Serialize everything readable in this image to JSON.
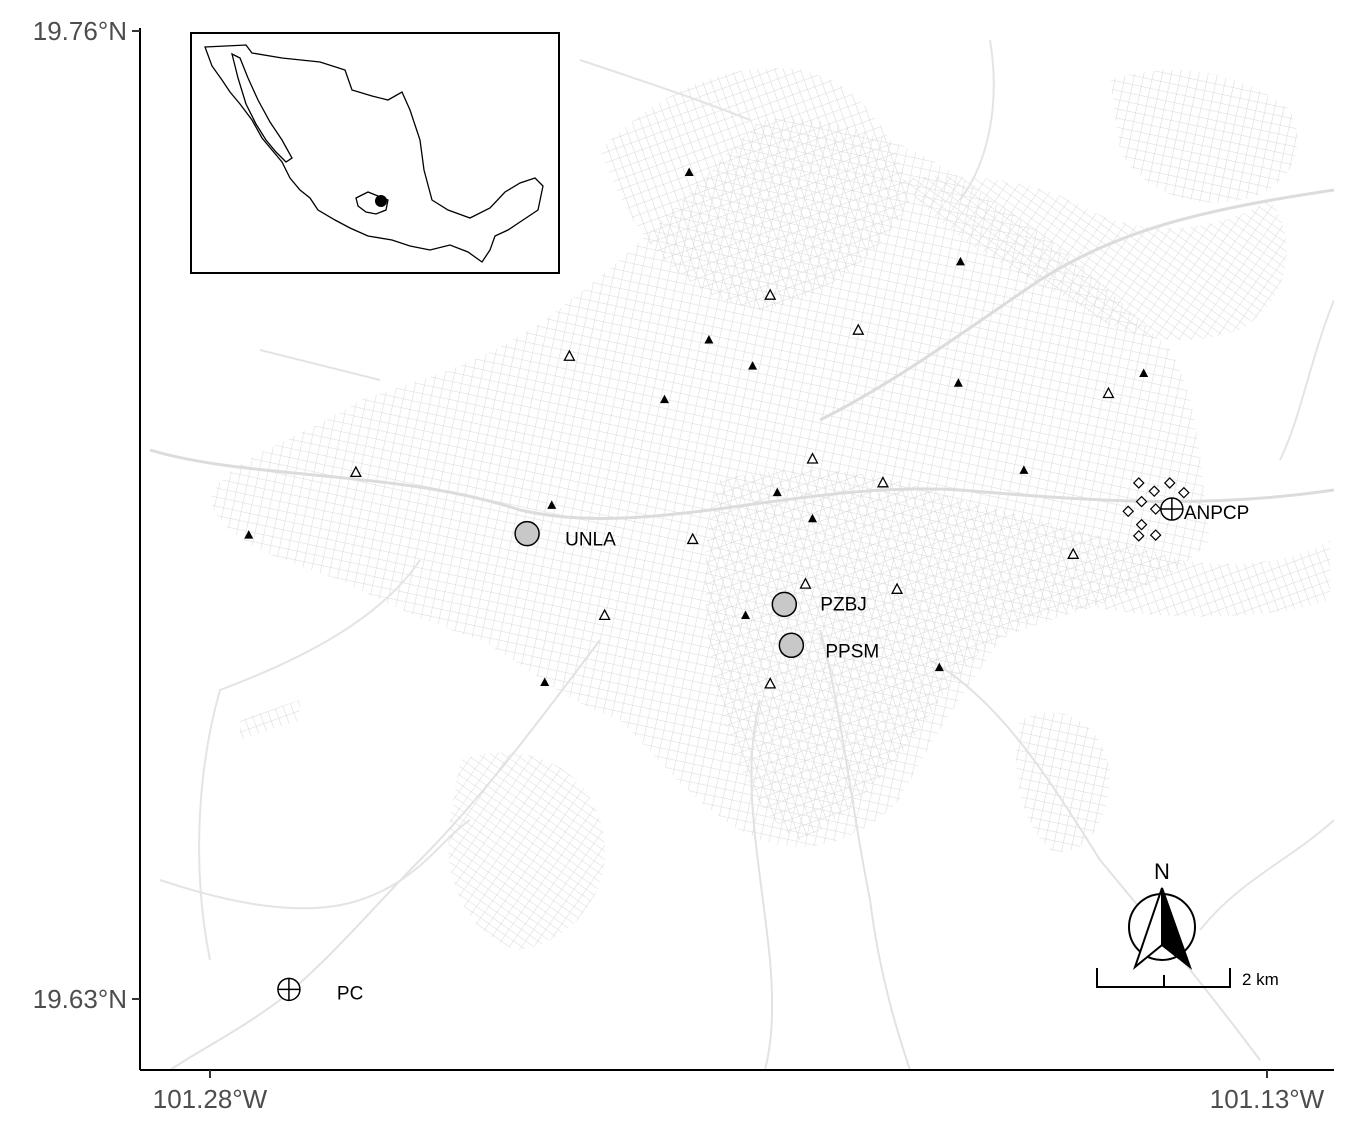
{
  "axes": {
    "x_ticks": [
      {
        "label": "101.28°W",
        "lon": -101.28
      },
      {
        "label": "101.13°W",
        "lon": -101.13
      }
    ],
    "y_ticks": [
      {
        "label": "19.76°N",
        "lat": 19.76
      },
      {
        "label": "19.63°N",
        "lat": 19.63
      }
    ]
  },
  "sites": [
    {
      "name": "UNLA",
      "label": "UNLA",
      "symbol": "grey-circle",
      "lon": -101.235,
      "lat": 19.6925
    },
    {
      "name": "PZBJ",
      "label": "PZBJ",
      "symbol": "grey-circle",
      "lon": -101.1985,
      "lat": 19.683
    },
    {
      "name": "PPSM",
      "label": "PPSM",
      "symbol": "grey-circle",
      "lon": -101.1975,
      "lat": 19.6775
    },
    {
      "name": "ANPCP",
      "label": "ANPCP",
      "symbol": "crossed-circle",
      "lon": -101.1435,
      "lat": 19.6958
    },
    {
      "name": "PC",
      "label": "PC",
      "symbol": "crossed-circle",
      "lon": -101.2688,
      "lat": 19.6313
    }
  ],
  "filled_triangles": [
    {
      "lon": -101.212,
      "lat": 19.741
    },
    {
      "lon": -101.1735,
      "lat": 19.729
    },
    {
      "lon": -101.2092,
      "lat": 19.7185
    },
    {
      "lon": -101.203,
      "lat": 19.715
    },
    {
      "lon": -101.2155,
      "lat": 19.7105
    },
    {
      "lon": -101.1738,
      "lat": 19.7127
    },
    {
      "lon": -101.1475,
      "lat": 19.714
    },
    {
      "lon": -101.1645,
      "lat": 19.701
    },
    {
      "lon": -101.1995,
      "lat": 19.698
    },
    {
      "lon": -101.2315,
      "lat": 19.6963
    },
    {
      "lon": -101.1945,
      "lat": 19.6945
    },
    {
      "lon": -101.2745,
      "lat": 19.6923
    },
    {
      "lon": -101.204,
      "lat": 19.6815
    },
    {
      "lon": -101.1765,
      "lat": 19.6745
    },
    {
      "lon": -101.2325,
      "lat": 19.6725
    }
  ],
  "open_triangles": [
    {
      "lon": -101.2005,
      "lat": 19.7245
    },
    {
      "lon": -101.188,
      "lat": 19.7198
    },
    {
      "lon": -101.229,
      "lat": 19.7163
    },
    {
      "lon": -101.1525,
      "lat": 19.7113
    },
    {
      "lon": -101.1945,
      "lat": 19.7025
    },
    {
      "lon": -101.1845,
      "lat": 19.6993
    },
    {
      "lon": -101.2593,
      "lat": 19.7007
    },
    {
      "lon": -101.2115,
      "lat": 19.6917
    },
    {
      "lon": -101.1575,
      "lat": 19.6897
    },
    {
      "lon": -101.1955,
      "lat": 19.6857
    },
    {
      "lon": -101.1825,
      "lat": 19.685
    },
    {
      "lon": -101.224,
      "lat": 19.6815
    },
    {
      "lon": -101.2005,
      "lat": 19.6723
    }
  ],
  "diamonds": [
    {
      "lon": -101.1482,
      "lat": 19.6993
    },
    {
      "lon": -101.146,
      "lat": 19.6982
    },
    {
      "lon": -101.1438,
      "lat": 19.6993
    },
    {
      "lon": -101.1418,
      "lat": 19.698
    },
    {
      "lon": -101.1478,
      "lat": 19.6968
    },
    {
      "lon": -101.1458,
      "lat": 19.6958
    },
    {
      "lon": -101.1497,
      "lat": 19.6955
    },
    {
      "lon": -101.1478,
      "lat": 19.6937
    },
    {
      "lon": -101.1458,
      "lat": 19.6923
    },
    {
      "lon": -101.1482,
      "lat": 19.6922
    }
  ],
  "north_arrow": {
    "letter": "N"
  },
  "scale_bar": {
    "label": "2 km"
  },
  "inset": {
    "description_icon": "mexico-outline-map",
    "marker": "study-area-dot"
  },
  "colors": {
    "streets": "#dcdcdc",
    "axis": "#000000",
    "site_fill": "#c8c8c8"
  }
}
